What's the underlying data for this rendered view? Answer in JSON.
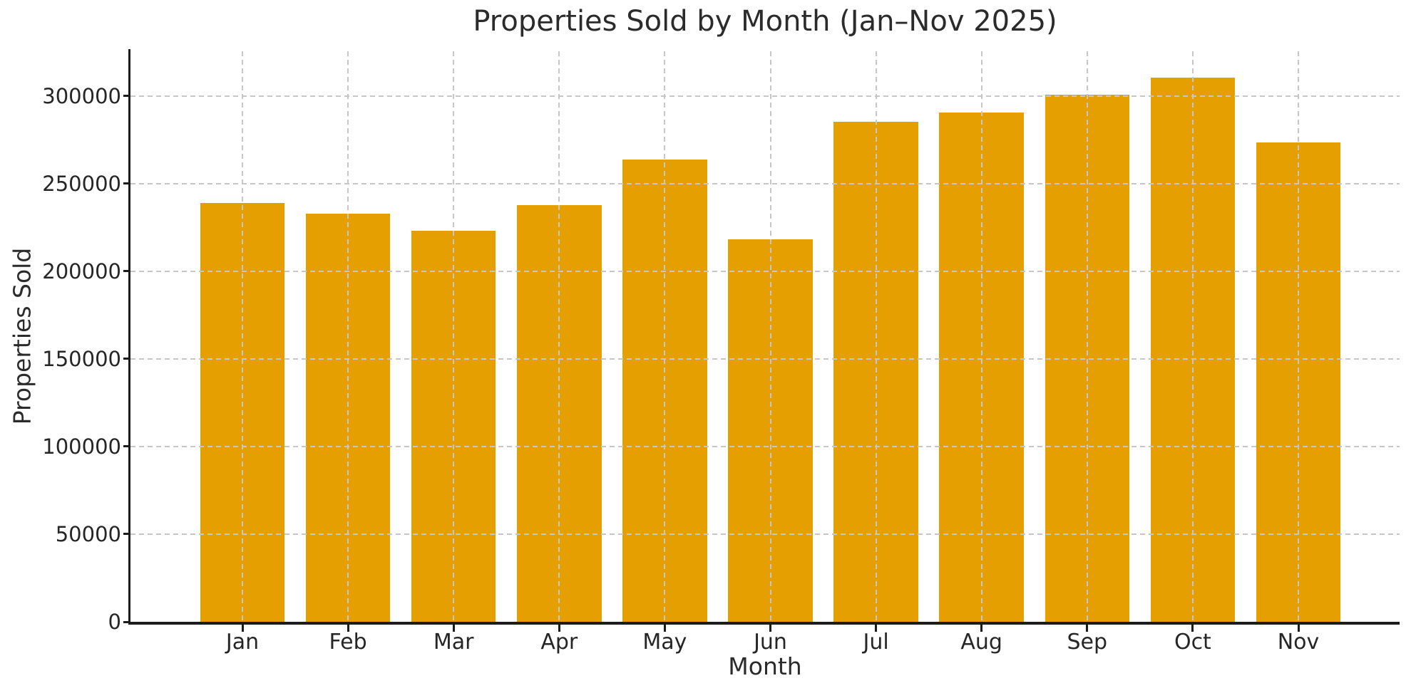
{
  "chart_data": {
    "type": "bar",
    "title": "Properties Sold by Month (Jan–Nov 2025)",
    "xlabel": "Month",
    "ylabel": "Properties Sold",
    "categories": [
      "Jan",
      "Feb",
      "Mar",
      "Apr",
      "May",
      "Jun",
      "Jul",
      "Aug",
      "Sep",
      "Oct",
      "Nov"
    ],
    "values": [
      238900,
      232900,
      223000,
      237700,
      263900,
      218300,
      285200,
      290800,
      300900,
      310500,
      273600
    ],
    "yticks": [
      0,
      50000,
      100000,
      150000,
      200000,
      250000,
      300000
    ],
    "ylim": [
      0,
      325600
    ],
    "grid": "dashed, drawn above bars, horizontal and vertical",
    "legend_position": "none",
    "colors": {
      "bar": "#E69F00",
      "grid": "#c6c6c6",
      "spine": "#1c1c1c",
      "text": "#262626"
    }
  }
}
